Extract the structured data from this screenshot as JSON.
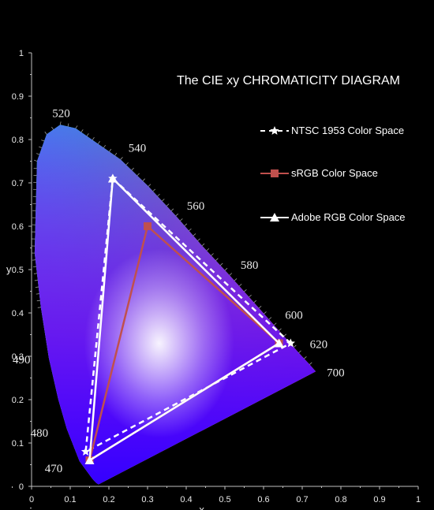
{
  "chart_data": {
    "type": "scatter",
    "title": "The CIE xy  CHROMATICITY  DIAGRAM",
    "xlabel": "x",
    "ylabel": "y",
    "xlim": [
      0,
      1
    ],
    "ylim": [
      0,
      1
    ],
    "x_ticks": [
      "0",
      "0.1",
      "0.2",
      "0.3",
      "0.4",
      "0.5",
      "0.6",
      "0.7",
      "0.8",
      "0.9",
      "1"
    ],
    "y_ticks": [
      "0",
      "0.1",
      "0.2",
      "0.3",
      "0.4",
      "0.5",
      "0.6",
      "0.7",
      "0.8",
      "0.9",
      "1"
    ],
    "grid": false,
    "legend_position": "right",
    "spectral_locus": [
      {
        "nm": "",
        "x": 0.174,
        "y": 0.005
      },
      {
        "nm": "",
        "x": 0.172,
        "y": 0.005
      },
      {
        "nm": "",
        "x": 0.166,
        "y": 0.009
      },
      {
        "nm": "",
        "x": 0.157,
        "y": 0.018
      },
      {
        "nm": "470",
        "x": 0.124,
        "y": 0.058
      },
      {
        "nm": "",
        "x": 0.091,
        "y": 0.133
      },
      {
        "nm": "480",
        "x": 0.091,
        "y": 0.133
      },
      {
        "nm": "",
        "x": 0.069,
        "y": 0.201
      },
      {
        "nm": "",
        "x": 0.045,
        "y": 0.295
      },
      {
        "nm": "490",
        "x": 0.045,
        "y": 0.295
      },
      {
        "nm": "",
        "x": 0.024,
        "y": 0.413
      },
      {
        "nm": "",
        "x": 0.008,
        "y": 0.538
      },
      {
        "nm": "",
        "x": 0.014,
        "y": 0.75
      },
      {
        "nm": "",
        "x": 0.039,
        "y": 0.812
      },
      {
        "nm": "520",
        "x": 0.074,
        "y": 0.834
      },
      {
        "nm": "",
        "x": 0.114,
        "y": 0.826
      },
      {
        "nm": "540",
        "x": 0.23,
        "y": 0.754
      },
      {
        "nm": "",
        "x": 0.302,
        "y": 0.692
      },
      {
        "nm": "560",
        "x": 0.373,
        "y": 0.624
      },
      {
        "nm": "",
        "x": 0.441,
        "y": 0.555
      },
      {
        "nm": "580",
        "x": 0.512,
        "y": 0.487
      },
      {
        "nm": "",
        "x": 0.575,
        "y": 0.424
      },
      {
        "nm": "600",
        "x": 0.627,
        "y": 0.372
      },
      {
        "nm": "620",
        "x": 0.691,
        "y": 0.308
      },
      {
        "nm": "",
        "x": 0.719,
        "y": 0.281
      },
      {
        "nm": "700",
        "x": 0.735,
        "y": 0.265
      }
    ],
    "wavelength_labels": [
      "520",
      "540",
      "560",
      "580",
      "600",
      "620",
      "700",
      "490",
      "480",
      "470"
    ],
    "series": [
      {
        "name": "NTSC 1953 Color Space",
        "color": "#ffffff",
        "line_style": "dashed",
        "marker": "star",
        "points": [
          {
            "x": 0.67,
            "y": 0.33
          },
          {
            "x": 0.21,
            "y": 0.71
          },
          {
            "x": 0.14,
            "y": 0.08
          }
        ]
      },
      {
        "name": "sRGB Color Space",
        "color": "#c0504d",
        "line_style": "solid",
        "marker": "square",
        "points": [
          {
            "x": 0.64,
            "y": 0.33
          },
          {
            "x": 0.3,
            "y": 0.6
          },
          {
            "x": 0.15,
            "y": 0.06
          }
        ]
      },
      {
        "name": "Adobe RGB Color Space",
        "color": "#ffffff",
        "line_style": "solid",
        "marker": "triangle",
        "points": [
          {
            "x": 0.64,
            "y": 0.33
          },
          {
            "x": 0.21,
            "y": 0.71
          },
          {
            "x": 0.15,
            "y": 0.06
          }
        ]
      }
    ]
  }
}
